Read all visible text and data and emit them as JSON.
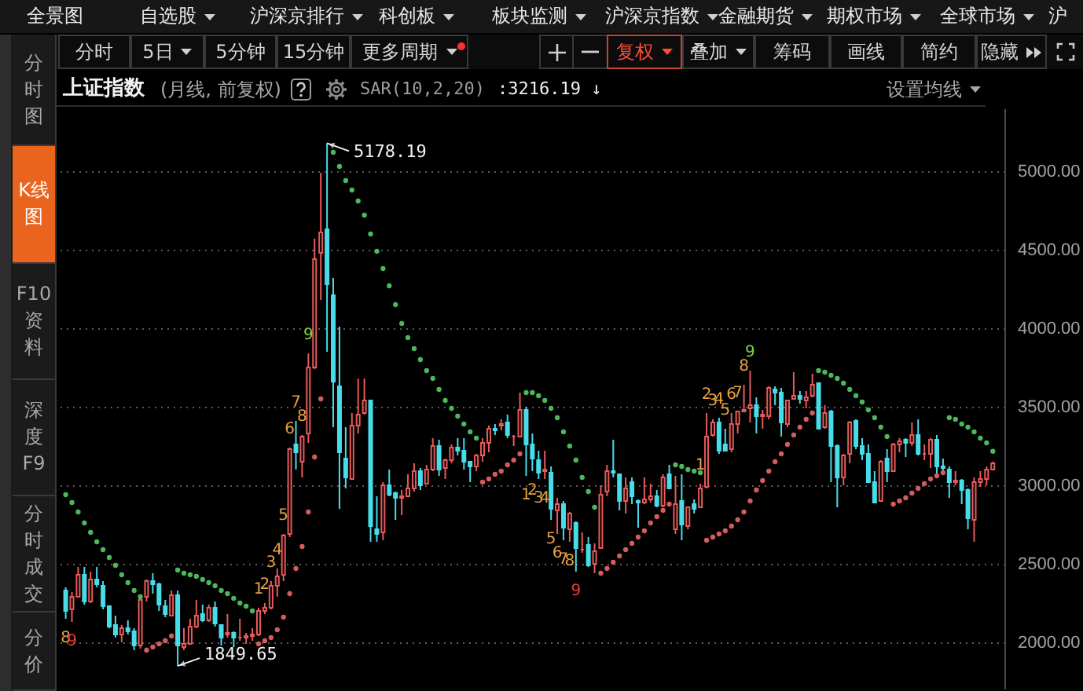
{
  "chart_data": [
    {
      "type": "other",
      "annotations": [
        "全景图",
        "自选股",
        "沪深京排行",
        "科创板",
        "板块监测",
        "沪深京指数",
        "金融期货",
        "期权市场",
        "全球市场",
        "沪"
      ]
    },
    {
      "type": "other",
      "annotations": [
        "分时图",
        "K线图",
        "F10资料",
        "深度F9",
        "分时成交",
        "分价"
      ]
    },
    {
      "type": "other",
      "annotations": [
        "分时",
        "5日",
        "5分钟",
        "15分钟",
        "更多周期",
        "复权",
        "叠加",
        "筹码",
        "画线",
        "简约",
        "隐藏"
      ]
    },
    {
      "type": "candlestick",
      "title": "上证指数",
      "subtitle": "(月线, 前复权)",
      "categories": [
        null,
        null,
        null,
        null,
        null,
        null,
        null,
        null,
        null,
        null,
        null,
        null,
        null,
        null,
        null,
        null,
        null,
        null,
        null,
        null,
        null,
        null,
        null,
        null,
        null,
        null,
        null,
        null,
        null,
        null,
        null,
        null,
        null,
        null,
        null,
        null,
        null,
        null,
        null,
        null,
        null,
        null,
        null,
        null,
        null,
        null,
        null,
        null,
        null,
        null,
        null,
        null,
        null,
        null,
        null,
        null,
        null,
        null,
        null,
        null,
        null,
        null,
        null,
        null,
        null,
        null,
        null,
        null,
        null,
        null,
        null,
        null,
        null,
        null,
        null,
        null,
        null,
        null,
        null,
        null,
        null,
        null,
        null,
        null,
        null,
        null,
        null,
        null,
        null,
        null,
        null,
        null,
        null,
        null,
        null,
        null,
        null,
        null,
        null,
        null,
        null,
        null,
        null,
        null,
        null,
        null,
        null,
        null,
        null,
        null,
        null,
        null,
        null,
        null,
        null,
        null,
        null,
        null,
        null,
        null,
        null,
        null,
        null,
        null,
        null,
        null,
        null,
        null,
        null,
        null,
        null,
        null,
        null,
        null,
        null,
        null,
        null,
        null,
        null,
        null,
        null,
        null,
        null,
        null,
        null,
        null,
        null,
        null,
        null,
        null
      ],
      "ohlc": [
        [
          2330,
          2350,
          2150,
          2200
        ],
        [
          2210,
          2320,
          2130,
          2290
        ],
        [
          2290,
          2480,
          2290,
          2430
        ],
        [
          2430,
          2480,
          2240,
          2260
        ],
        [
          2260,
          2450,
          2250,
          2400
        ],
        [
          2400,
          2480,
          2350,
          2370
        ],
        [
          2360,
          2390,
          2210,
          2230
        ],
        [
          2230,
          2230,
          2090,
          2100
        ],
        [
          2110,
          2170,
          2030,
          2050
        ],
        [
          2050,
          2110,
          2000,
          2090
        ],
        [
          2090,
          2140,
          2050,
          2070
        ],
        [
          2070,
          2090,
          1950,
          1980
        ],
        [
          1980,
          2280,
          1960,
          2270
        ],
        [
          2290,
          2400,
          2260,
          2390
        ],
        [
          2390,
          2440,
          2310,
          2370
        ],
        [
          2370,
          2380,
          2200,
          2240
        ],
        [
          2230,
          2270,
          2160,
          2180
        ],
        [
          2170,
          2330,
          2170,
          2300
        ],
        [
          2300,
          2330,
          1849.65,
          1980
        ],
        [
          1970,
          2090,
          1950,
          1990
        ],
        [
          1990,
          2150,
          1990,
          2100
        ],
        [
          2100,
          2270,
          2090,
          2170
        ],
        [
          2180,
          2240,
          2130,
          2140
        ],
        [
          2140,
          2240,
          2130,
          2220
        ],
        [
          2220,
          2260,
          2100,
          2120
        ],
        [
          2110,
          2110,
          1980,
          2030
        ],
        [
          2050,
          2180,
          2030,
          2060
        ],
        [
          2060,
          2070,
          1970,
          2030
        ],
        [
          2030,
          2150,
          2010,
          2030
        ],
        [
          2030,
          2060,
          1990,
          2040
        ],
        [
          2040,
          2090,
          2010,
          2050
        ],
        [
          2050,
          2220,
          2040,
          2200
        ],
        [
          2200,
          2250,
          2180,
          2220
        ],
        [
          2220,
          2390,
          2210,
          2360
        ],
        [
          2360,
          2470,
          2290,
          2420
        ],
        [
          2430,
          2690,
          2390,
          2680
        ],
        [
          2690,
          3240,
          2670,
          3230
        ],
        [
          3260,
          3410,
          3100,
          3210
        ],
        [
          3150,
          3320,
          3050,
          3310
        ],
        [
          3330,
          3840,
          3270,
          3750
        ],
        [
          3750,
          4570,
          3740,
          4440
        ],
        [
          4480,
          4990,
          4180,
          4610
        ],
        [
          4630,
          5178.19,
          3850,
          4280
        ],
        [
          4210,
          4320,
          3370,
          3660
        ],
        [
          3630,
          4010,
          2850,
          3210
        ],
        [
          3170,
          3370,
          2980,
          3050
        ],
        [
          3040,
          3460,
          3040,
          3380
        ],
        [
          3380,
          3680,
          3330,
          3450
        ],
        [
          3460,
          3680,
          3450,
          3540
        ],
        [
          3540,
          3540,
          2640,
          2740
        ],
        [
          2720,
          2930,
          2640,
          2690
        ],
        [
          2700,
          3020,
          2650,
          3000
        ],
        [
          3000,
          3100,
          2930,
          2940
        ],
        [
          2950,
          2960,
          2780,
          2920
        ],
        [
          2920,
          2970,
          2810,
          2930
        ],
        [
          2930,
          3070,
          2930,
          2980
        ],
        [
          2980,
          3140,
          2960,
          3090
        ],
        [
          3090,
          3110,
          2970,
          3000
        ],
        [
          3010,
          3130,
          3010,
          3100
        ],
        [
          3100,
          3300,
          3090,
          3250
        ],
        [
          3250,
          3290,
          3060,
          3100
        ],
        [
          3110,
          3170,
          3040,
          3160
        ],
        [
          3160,
          3260,
          3140,
          3240
        ],
        [
          3240,
          3300,
          3190,
          3220
        ],
        [
          3220,
          3300,
          3100,
          3150
        ],
        [
          3150,
          3150,
          3020,
          3120
        ],
        [
          3120,
          3200,
          3090,
          3190
        ],
        [
          3190,
          3300,
          3150,
          3270
        ],
        [
          3270,
          3380,
          3210,
          3360
        ],
        [
          3360,
          3390,
          3320,
          3350
        ],
        [
          3380,
          3420,
          3350,
          3390
        ],
        [
          3400,
          3450,
          3300,
          3320
        ],
        [
          3310,
          3320,
          3250,
          3310
        ],
        [
          3310,
          3590,
          3310,
          3480
        ],
        [
          3480,
          3500,
          3060,
          3260
        ],
        [
          3260,
          3330,
          3090,
          3170
        ],
        [
          3160,
          3220,
          3040,
          3080
        ],
        [
          3090,
          3220,
          3040,
          3100
        ],
        [
          3080,
          3120,
          2780,
          2850
        ],
        [
          2840,
          2920,
          2690,
          2880
        ],
        [
          2880,
          2900,
          2650,
          2730
        ],
        [
          2720,
          2830,
          2640,
          2820
        ],
        [
          2760,
          2770,
          2450,
          2600
        ],
        [
          2590,
          2700,
          2570,
          2590
        ],
        [
          2620,
          2670,
          2480,
          2490
        ],
        [
          2500,
          2630,
          2440,
          2580
        ],
        [
          2600,
          3000,
          2600,
          2940
        ],
        [
          2960,
          3130,
          2930,
          3090
        ],
        [
          3090,
          3290,
          3050,
          3080
        ],
        [
          3070,
          3070,
          2840,
          2900
        ],
        [
          2900,
          3050,
          2820,
          2980
        ],
        [
          3020,
          3050,
          2880,
          2930
        ],
        [
          2900,
          2910,
          2730,
          2890
        ],
        [
          2890,
          3050,
          2880,
          2910
        ],
        [
          2910,
          3010,
          2890,
          2930
        ],
        [
          2930,
          2970,
          2860,
          2870
        ],
        [
          2870,
          3070,
          2860,
          3050
        ],
        [
          3070,
          3130,
          2980,
          2980
        ],
        [
          2720,
          3060,
          2690,
          2880
        ],
        [
          2900,
          3070,
          2650,
          2750
        ],
        [
          2740,
          2860,
          2720,
          2860
        ],
        [
          2880,
          2910,
          2820,
          2850
        ],
        [
          2860,
          3010,
          2860,
          2980
        ],
        [
          2990,
          3460,
          2980,
          3310
        ],
        [
          3320,
          3420,
          3310,
          3400
        ],
        [
          3400,
          3430,
          3200,
          3220
        ],
        [
          3260,
          3360,
          3220,
          3220
        ],
        [
          3230,
          3460,
          3210,
          3390
        ],
        [
          3390,
          3470,
          3330,
          3470
        ],
        [
          3470,
          3640,
          3470,
          3480
        ],
        [
          3490,
          3730,
          3400,
          3510
        ],
        [
          3510,
          3560,
          3330,
          3440
        ],
        [
          3440,
          3480,
          3360,
          3450
        ],
        [
          3440,
          3630,
          3420,
          3620
        ],
        [
          3610,
          3630,
          3510,
          3590
        ],
        [
          3590,
          3620,
          3310,
          3400
        ],
        [
          3390,
          3540,
          3370,
          3540
        ],
        [
          3550,
          3720,
          3550,
          3570
        ],
        [
          3570,
          3600,
          3520,
          3550
        ],
        [
          3540,
          3600,
          3490,
          3560
        ],
        [
          3570,
          3710,
          3560,
          3640
        ],
        [
          3650,
          3650,
          3360,
          3360
        ],
        [
          3370,
          3510,
          3360,
          3460
        ],
        [
          3470,
          3480,
          3020,
          3250
        ],
        [
          3250,
          3260,
          2860,
          3050
        ],
        [
          3050,
          3200,
          3000,
          3190
        ],
        [
          3200,
          3410,
          3140,
          3400
        ],
        [
          3410,
          3420,
          3230,
          3250
        ],
        [
          3250,
          3300,
          3160,
          3200
        ],
        [
          3200,
          3260,
          3020,
          3020
        ],
        [
          3020,
          3090,
          2890,
          2890
        ],
        [
          2900,
          3160,
          2900,
          3150
        ],
        [
          3170,
          3230,
          3020,
          3090
        ],
        [
          3090,
          3270,
          3090,
          3260
        ],
        [
          3260,
          3300,
          3210,
          3280
        ],
        [
          3290,
          3300,
          3180,
          3270
        ],
        [
          3270,
          3400,
          3250,
          3320
        ],
        [
          3320,
          3420,
          3190,
          3200
        ],
        [
          3200,
          3260,
          3160,
          3200
        ],
        [
          3200,
          3300,
          3110,
          3290
        ],
        [
          3290,
          3320,
          3050,
          3120
        ],
        [
          3120,
          3170,
          3090,
          3110
        ],
        [
          3100,
          3120,
          2920,
          3020
        ],
        [
          3020,
          3090,
          3000,
          3030
        ],
        [
          3030,
          3040,
          2880,
          2970
        ],
        [
          2970,
          2980,
          2720,
          2790
        ],
        [
          2780,
          3050,
          2640,
          3020
        ],
        [
          3020,
          3090,
          2990,
          3040
        ],
        [
          3040,
          3120,
          3000,
          3100
        ],
        [
          3100,
          3150,
          3100,
          3140
        ]
      ],
      "colors": [
        "#48dce8",
        "#e85a5a",
        "#e85a5a",
        "#48dce8",
        "#e85a5a",
        "#48dce8",
        "#48dce8",
        "#48dce8",
        "#48dce8",
        "#e85a5a",
        "#48dce8",
        "#48dce8",
        "#e85a5a",
        "#e85a5a",
        "#48dce8",
        "#48dce8",
        "#48dce8",
        "#e85a5a",
        "#48dce8",
        "#e85a5a",
        "#e85a5a",
        "#e85a5a",
        "#48dce8",
        "#e85a5a",
        "#48dce8",
        "#48dce8",
        "#e85a5a",
        "#48dce8",
        "#e85a5a",
        "#e85a5a",
        "#e85a5a",
        "#e85a5a",
        "#e85a5a",
        "#e85a5a",
        "#e85a5a",
        "#e85a5a",
        "#e85a5a",
        "#48dce8",
        "#e85a5a",
        "#e85a5a",
        "#e85a5a",
        "#e85a5a",
        "#48dce8",
        "#48dce8",
        "#48dce8",
        "#48dce8",
        "#e85a5a",
        "#e85a5a",
        "#e85a5a",
        "#48dce8",
        "#48dce8",
        "#e85a5a",
        "#48dce8",
        "#48dce8",
        "#e85a5a",
        "#e85a5a",
        "#e85a5a",
        "#48dce8",
        "#e85a5a",
        "#e85a5a",
        "#48dce8",
        "#e85a5a",
        "#e85a5a",
        "#48dce8",
        "#48dce8",
        "#48dce8",
        "#e85a5a",
        "#e85a5a",
        "#e85a5a",
        "#48dce8",
        "#e85a5a",
        "#48dce8",
        "#e85a5a",
        "#e85a5a",
        "#48dce8",
        "#48dce8",
        "#48dce8",
        "#e85a5a",
        "#48dce8",
        "#e85a5a",
        "#48dce8",
        "#e85a5a",
        "#48dce8",
        "#e85a5a",
        "#48dce8",
        "#e85a5a",
        "#e85a5a",
        "#e85a5a",
        "#48dce8",
        "#48dce8",
        "#e85a5a",
        "#48dce8",
        "#48dce8",
        "#e85a5a",
        "#e85a5a",
        "#48dce8",
        "#e85a5a",
        "#48dce8",
        "#e85a5a",
        "#48dce8",
        "#e85a5a",
        "#48dce8",
        "#e85a5a",
        "#e85a5a",
        "#e85a5a",
        "#48dce8",
        "#48dce8",
        "#e85a5a",
        "#e85a5a",
        "#e85a5a",
        "#e85a5a",
        "#48dce8",
        "#e85a5a",
        "#e85a5a",
        "#48dce8",
        "#48dce8",
        "#e85a5a",
        "#e85a5a",
        "#48dce8",
        "#e85a5a",
        "#e85a5a",
        "#48dce8",
        "#e85a5a",
        "#48dce8",
        "#48dce8",
        "#e85a5a",
        "#e85a5a",
        "#48dce8",
        "#48dce8",
        "#48dce8",
        "#48dce8",
        "#e85a5a",
        "#48dce8",
        "#e85a5a",
        "#e85a5a",
        "#48dce8",
        "#e85a5a",
        "#48dce8",
        "#e85a5a",
        "#e85a5a",
        "#48dce8",
        "#48dce8",
        "#48dce8",
        "#e85a5a",
        "#48dce8",
        "#48dce8",
        "#e85a5a",
        "#e85a5a",
        "#e85a5a",
        "#e85a5a"
      ],
      "value_labels": [
        "8",
        "9",
        null,
        null,
        null,
        null,
        null,
        null,
        null,
        null,
        null,
        null,
        null,
        null,
        null,
        null,
        null,
        null,
        null,
        null,
        null,
        null,
        null,
        null,
        null,
        null,
        null,
        null,
        null,
        null,
        null,
        "1",
        "2",
        "3",
        "4",
        "5",
        "6",
        "7",
        "8",
        "9",
        null,
        null,
        null,
        null,
        null,
        null,
        null,
        null,
        null,
        null,
        null,
        null,
        null,
        null,
        null,
        null,
        null,
        null,
        null,
        null,
        null,
        null,
        null,
        null,
        null,
        null,
        null,
        null,
        null,
        null,
        null,
        null,
        null,
        null,
        "1",
        "2",
        "3",
        "4",
        "5",
        "6",
        "7",
        "8",
        "9",
        null,
        null,
        null,
        null,
        null,
        null,
        null,
        null,
        null,
        null,
        null,
        null,
        null,
        null,
        null,
        null,
        null,
        null,
        null,
        "1",
        "2",
        "3",
        "4",
        "5",
        "6",
        "7",
        "8",
        "9",
        null,
        null,
        null,
        null,
        null,
        null,
        null,
        null,
        null,
        null,
        null,
        null,
        null,
        null,
        null,
        null,
        null,
        null,
        null,
        null,
        null,
        null,
        null,
        null,
        null,
        null,
        null,
        null,
        null,
        null,
        null,
        null,
        null,
        null,
        null,
        null,
        null,
        null,
        null
      ],
      "series": [
        {
          "type": "scatter",
          "name": "SAR(10,2,20)",
          "marker": "circle",
          "values": [
            2940,
            2890,
            2830,
            2760,
            2700,
            2640,
            2590,
            2540,
            2490,
            2430,
            2380,
            2330,
            2290,
            1950,
            1970,
            1990,
            2010,
            2040,
            2460,
            2440,
            2430,
            2420,
            2400,
            2380,
            2360,
            2330,
            2310,
            2280,
            2250,
            2230,
            2200,
            1990,
            2010,
            2030,
            2080,
            2160,
            2310,
            2470,
            2610,
            2830,
            3180,
            3550,
            null,
            5120,
            5030,
            4940,
            4880,
            4810,
            4720,
            4600,
            4490,
            4380,
            4270,
            4150,
            4030,
            3940,
            3870,
            3800,
            3730,
            3680,
            3610,
            3540,
            3490,
            3440,
            3390,
            3340,
            3300,
            3020,
            3040,
            3070,
            3090,
            3130,
            3160,
            3200,
            3590,
            3590,
            3570,
            3540,
            3490,
            3430,
            3340,
            3250,
            3160,
            3050,
            2960,
            2860,
            2440,
            2470,
            2510,
            2550,
            2590,
            2630,
            2670,
            2710,
            2760,
            2800,
            2840,
            2880,
            3130,
            3120,
            3100,
            3090,
            3080,
            2650,
            2670,
            2690,
            2710,
            2740,
            2780,
            2830,
            2900,
            2970,
            3030,
            3090,
            3150,
            3200,
            3260,
            3320,
            3370,
            3420,
            3460,
            3730,
            3720,
            3700,
            3680,
            3650,
            3610,
            3570,
            3530,
            3480,
            3430,
            3370,
            3310,
            2880,
            2900,
            2920,
            2950,
            2980,
            3010,
            3040,
            3060,
            3080,
            3430,
            3420,
            3390,
            3370,
            3340,
            3300,
            3270,
            3216.19
          ],
          "colors": [
            "#4cb85c",
            "#4cb85c",
            "#4cb85c",
            "#4cb85c",
            "#4cb85c",
            "#4cb85c",
            "#4cb85c",
            "#4cb85c",
            "#4cb85c",
            "#4cb85c",
            "#4cb85c",
            "#4cb85c",
            "#4cb85c",
            "#d45c5c",
            "#d45c5c",
            "#d45c5c",
            "#d45c5c",
            "#d45c5c",
            "#4cb85c",
            "#4cb85c",
            "#4cb85c",
            "#4cb85c",
            "#4cb85c",
            "#4cb85c",
            "#4cb85c",
            "#4cb85c",
            "#4cb85c",
            "#4cb85c",
            "#4cb85c",
            "#4cb85c",
            "#4cb85c",
            "#d45c5c",
            "#d45c5c",
            "#d45c5c",
            "#d45c5c",
            "#d45c5c",
            "#d45c5c",
            "#d45c5c",
            "#d45c5c",
            "#d45c5c",
            "#d45c5c",
            "#d45c5c",
            null,
            "#4cb85c",
            "#4cb85c",
            "#4cb85c",
            "#4cb85c",
            "#4cb85c",
            "#4cb85c",
            "#4cb85c",
            "#4cb85c",
            "#4cb85c",
            "#4cb85c",
            "#4cb85c",
            "#4cb85c",
            "#4cb85c",
            "#4cb85c",
            "#4cb85c",
            "#4cb85c",
            "#4cb85c",
            "#4cb85c",
            "#4cb85c",
            "#4cb85c",
            "#4cb85c",
            "#4cb85c",
            "#4cb85c",
            "#4cb85c",
            "#d45c5c",
            "#d45c5c",
            "#d45c5c",
            "#d45c5c",
            "#d45c5c",
            "#d45c5c",
            "#d45c5c",
            "#4cb85c",
            "#4cb85c",
            "#4cb85c",
            "#4cb85c",
            "#4cb85c",
            "#4cb85c",
            "#4cb85c",
            "#4cb85c",
            "#4cb85c",
            "#4cb85c",
            "#4cb85c",
            "#4cb85c",
            "#d45c5c",
            "#d45c5c",
            "#d45c5c",
            "#d45c5c",
            "#d45c5c",
            "#d45c5c",
            "#d45c5c",
            "#d45c5c",
            "#d45c5c",
            "#d45c5c",
            "#d45c5c",
            "#d45c5c",
            "#4cb85c",
            "#4cb85c",
            "#4cb85c",
            "#4cb85c",
            "#4cb85c",
            "#d45c5c",
            "#d45c5c",
            "#d45c5c",
            "#d45c5c",
            "#d45c5c",
            "#d45c5c",
            "#d45c5c",
            "#d45c5c",
            "#d45c5c",
            "#d45c5c",
            "#d45c5c",
            "#d45c5c",
            "#d45c5c",
            "#d45c5c",
            "#d45c5c",
            "#d45c5c",
            "#d45c5c",
            "#d45c5c",
            "#4cb85c",
            "#4cb85c",
            "#4cb85c",
            "#4cb85c",
            "#4cb85c",
            "#4cb85c",
            "#4cb85c",
            "#4cb85c",
            "#4cb85c",
            "#4cb85c",
            "#4cb85c",
            "#4cb85c",
            "#d45c5c",
            "#d45c5c",
            "#d45c5c",
            "#d45c5c",
            "#d45c5c",
            "#d45c5c",
            "#d45c5c",
            "#d45c5c",
            "#d45c5c",
            "#4cb85c",
            "#4cb85c",
            "#4cb85c",
            "#4cb85c",
            "#4cb85c",
            "#4cb85c",
            "#4cb85c",
            "#4cb85c"
          ]
        }
      ],
      "ylim": [
        1700,
        5400
      ],
      "yticks": [
        {
          "value": 2000,
          "label": "2000.00"
        },
        {
          "value": 2500,
          "label": "2500.00"
        },
        {
          "value": 3000,
          "label": "3000.00"
        },
        {
          "value": 3500,
          "label": "3500.00"
        },
        {
          "value": 4000,
          "label": "4000.00"
        },
        {
          "value": 4500,
          "label": "4500.00"
        },
        {
          "value": 5000,
          "label": "5000.00"
        }
      ],
      "grid": "y",
      "legend": "top left",
      "annotations": [
        "5178.19",
        "1849.65",
        ":3216.19 ↓",
        "设置均线"
      ]
    }
  ]
}
